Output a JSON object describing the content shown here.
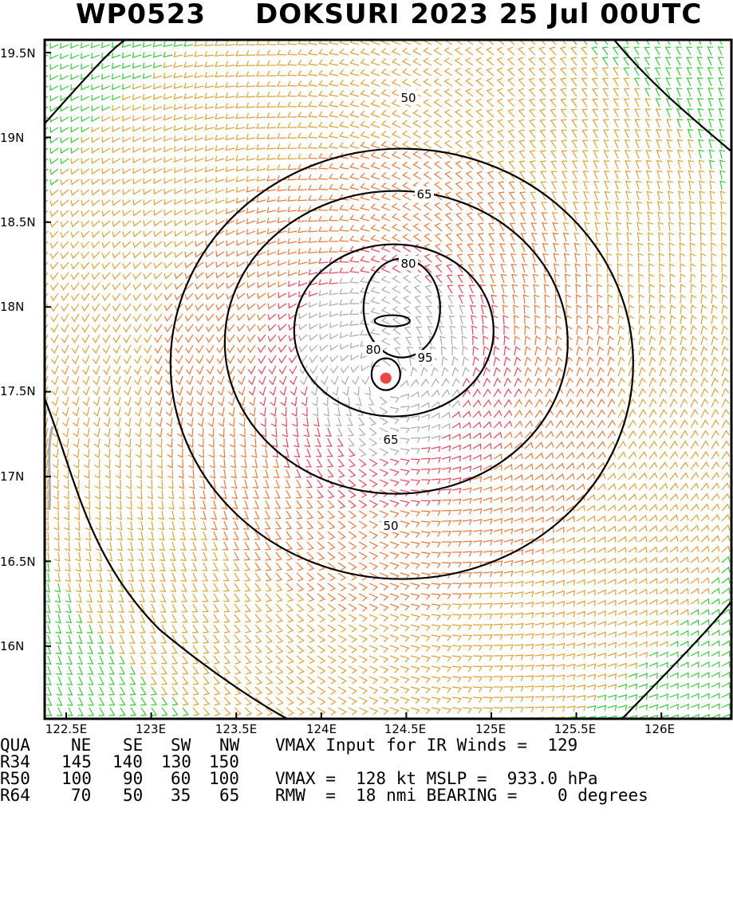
{
  "header": {
    "storm_id": "WP0523",
    "storm_title": "DOKSURI 2023 25 Jul 00UTC"
  },
  "map": {
    "lat_labels": [
      "19.5N",
      "19N",
      "18.5N",
      "18N",
      "17.5N",
      "17N",
      "16.5N",
      "16N"
    ],
    "lon_labels": [
      "122.5E",
      "123E",
      "123.5E",
      "124E",
      "124.5E",
      "125E",
      "125.5E",
      "126E"
    ],
    "contour_labels": [
      "50",
      "65",
      "80",
      "95",
      "80",
      "65",
      "50"
    ],
    "center": {
      "lat": 17.58,
      "lon": 124.38
    },
    "colors": {
      "frame": "#000000",
      "contour": "#000000",
      "barb_34": "#33cc33",
      "barb_50": "#e0a030",
      "barb_65": "#ee7733",
      "barb_80": "#ee4455",
      "barb_95": "#aaaaaa",
      "center": "#ee4444",
      "land": "#aaaaaa"
    }
  },
  "info": {
    "quad_header": {
      "label": "QUA",
      "ne": "NE",
      "se": "SE",
      "sw": "SW",
      "nw": "NW"
    },
    "r34": {
      "label": "R34",
      "ne": "145",
      "se": "140",
      "sw": "130",
      "nw": "150"
    },
    "r50": {
      "label": "R50",
      "ne": "100",
      "se": "90",
      "sw": "60",
      "nw": "100"
    },
    "r64": {
      "label": "R64",
      "ne": "70",
      "se": "50",
      "sw": "35",
      "nw": "65"
    },
    "vmax_input": "VMAX Input for IR Winds =  129",
    "vmax_mslp": "VMAX =  128 kt MSLP =  933.0 hPa",
    "rmw_bearing": "RMW  =  18 nmi BEARING =    0 degrees"
  }
}
